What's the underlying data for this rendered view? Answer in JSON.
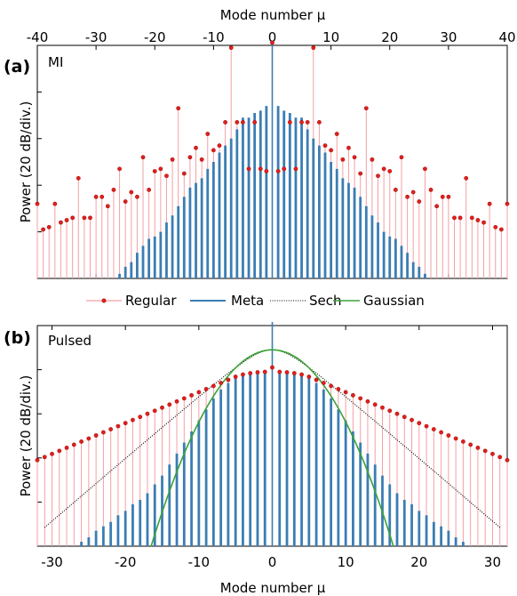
{
  "colors": {
    "regular": "#f4a0a4",
    "regular_marker": "#e0201c",
    "meta": "#3b7db4",
    "sech": "#000000",
    "gaussian": "#3aa335"
  },
  "chart_data": [
    {
      "type": "stem",
      "panel_letter": "(a)",
      "panel_name": "MI",
      "xlabel": "Mode number μ",
      "xlabel_position": "top",
      "ylabel": "Power (20 dB/div.)",
      "xlim": [
        -40,
        40
      ],
      "xticks": [
        -40,
        -30,
        -20,
        -10,
        0,
        10,
        20,
        30,
        40
      ],
      "xtick_labels": [
        "-40",
        "-30",
        "-20",
        "-10",
        "0",
        "10",
        "20",
        "30",
        "40"
      ],
      "ylim": [
        0,
        5
      ],
      "y_units": "divisions (20 dB each)",
      "series": [
        {
          "name": "Regular",
          "style": "stem-with-dot-markers",
          "x": [
            -40,
            -39,
            -38,
            -37,
            -36,
            -35,
            -34,
            -33,
            -32,
            -31,
            -30,
            -29,
            -28,
            -27,
            -26,
            -25,
            -24,
            -23,
            -22,
            -21,
            -20,
            -19,
            -18,
            -17,
            -16,
            -15,
            -14,
            -13,
            -12,
            -11,
            -10,
            -9,
            -8,
            -7,
            -6,
            -5,
            -4,
            -3,
            -2,
            -1,
            0,
            1,
            2,
            3,
            4,
            5,
            6,
            7,
            8,
            9,
            10,
            11,
            12,
            13,
            14,
            15,
            16,
            17,
            18,
            19,
            20,
            21,
            22,
            23,
            24,
            25,
            26,
            27,
            28,
            29,
            30,
            31,
            32,
            33,
            34,
            35,
            36,
            37,
            38,
            39,
            40
          ],
          "y": [
            1.6,
            1.05,
            1.1,
            1.6,
            1.2,
            1.25,
            1.3,
            2.15,
            1.3,
            1.3,
            1.75,
            1.75,
            1.55,
            1.9,
            2.35,
            1.65,
            1.85,
            1.75,
            2.6,
            1.9,
            2.3,
            2.35,
            2.2,
            2.55,
            3.65,
            2.25,
            2.6,
            2.8,
            2.55,
            3.1,
            2.75,
            2.85,
            3.35,
            4.95,
            3.35,
            3.35,
            2.35,
            3.35,
            2.35,
            2.3,
            5.9,
            2.3,
            2.35,
            3.35,
            2.35,
            3.35,
            3.35,
            4.95,
            3.35,
            2.85,
            2.75,
            3.1,
            2.55,
            2.8,
            2.6,
            2.25,
            3.65,
            2.55,
            2.2,
            2.35,
            2.3,
            1.9,
            2.6,
            1.75,
            1.85,
            1.65,
            2.35,
            1.9,
            1.55,
            1.75,
            1.75,
            1.3,
            1.3,
            2.15,
            1.3,
            1.25,
            1.2,
            1.6,
            1.1,
            1.05,
            1.6
          ]
        },
        {
          "name": "Meta",
          "style": "thick-bars",
          "x": [
            -40,
            -39,
            -38,
            -37,
            -36,
            -35,
            -34,
            -33,
            -32,
            -31,
            -30,
            -29,
            -28,
            -27,
            -26,
            -25,
            -24,
            -23,
            -22,
            -21,
            -20,
            -19,
            -18,
            -17,
            -16,
            -15,
            -14,
            -13,
            -12,
            -11,
            -10,
            -9,
            -8,
            -7,
            -6,
            -5,
            -4,
            -3,
            -2,
            -1,
            0,
            1,
            2,
            3,
            4,
            5,
            6,
            7,
            8,
            9,
            10,
            11,
            12,
            13,
            14,
            15,
            16,
            17,
            18,
            19,
            20,
            21,
            22,
            23,
            24,
            25,
            26,
            27,
            28,
            29,
            30,
            31,
            32,
            33,
            34,
            35,
            36,
            37,
            38,
            39,
            40
          ],
          "y": [
            0,
            0,
            0,
            0,
            0,
            0,
            0,
            0,
            0,
            0,
            0,
            0,
            0,
            0,
            0.1,
            0.25,
            0.35,
            0.55,
            0.7,
            0.85,
            0.9,
            1.0,
            1.2,
            1.35,
            1.55,
            1.75,
            1.95,
            2.05,
            2.15,
            2.35,
            2.5,
            2.7,
            2.85,
            3.0,
            3.2,
            3.45,
            3.45,
            3.55,
            3.6,
            3.7,
            6.4,
            3.7,
            3.6,
            3.55,
            3.45,
            3.45,
            3.2,
            3.0,
            2.85,
            2.7,
            2.5,
            2.35,
            2.15,
            2.05,
            1.95,
            1.75,
            1.55,
            1.35,
            1.2,
            1.0,
            0.9,
            0.85,
            0.7,
            0.55,
            0.35,
            0.25,
            0.1,
            0,
            0,
            0,
            0,
            0,
            0,
            0,
            0,
            0,
            0,
            0,
            0,
            0,
            0
          ]
        }
      ]
    },
    {
      "type": "stem",
      "panel_letter": "(b)",
      "panel_name": "Pulsed",
      "xlabel": "Mode number μ",
      "xlabel_position": "bottom",
      "ylabel": "Power (20 dB/div.)",
      "xlim": [
        -32,
        32
      ],
      "xticks": [
        -30,
        -20,
        -10,
        0,
        10,
        20,
        30
      ],
      "xtick_labels": [
        "-30",
        "-20",
        "-10",
        "0",
        "10",
        "20",
        "30"
      ],
      "ylim": [
        0,
        5
      ],
      "y_units": "divisions (20 dB each)",
      "series": [
        {
          "name": "Regular",
          "style": "stem-with-dot-markers",
          "x": [
            -32,
            -31,
            -30,
            -29,
            -28,
            -27,
            -26,
            -25,
            -24,
            -23,
            -22,
            -21,
            -20,
            -19,
            -18,
            -17,
            -16,
            -15,
            -14,
            -13,
            -12,
            -11,
            -10,
            -9,
            -8,
            -7,
            -6,
            -5,
            -4,
            -3,
            -2,
            -1,
            0,
            1,
            2,
            3,
            4,
            5,
            6,
            7,
            8,
            9,
            10,
            11,
            12,
            13,
            14,
            15,
            16,
            17,
            18,
            19,
            20,
            21,
            22,
            23,
            24,
            25,
            26,
            27,
            28,
            29,
            30,
            31,
            32
          ],
          "y": [
            1.95,
            2.02,
            2.09,
            2.16,
            2.23,
            2.3,
            2.37,
            2.44,
            2.51,
            2.58,
            2.65,
            2.72,
            2.79,
            2.86,
            2.93,
            3.0,
            3.07,
            3.14,
            3.21,
            3.28,
            3.35,
            3.42,
            3.49,
            3.56,
            3.63,
            3.7,
            3.77,
            3.84,
            3.89,
            3.92,
            3.94,
            3.95,
            4.05,
            3.95,
            3.94,
            3.92,
            3.89,
            3.84,
            3.77,
            3.7,
            3.63,
            3.56,
            3.49,
            3.42,
            3.35,
            3.28,
            3.21,
            3.14,
            3.07,
            3.0,
            2.93,
            2.86,
            2.79,
            2.72,
            2.65,
            2.58,
            2.51,
            2.44,
            2.37,
            2.3,
            2.23,
            2.16,
            2.09,
            2.02,
            1.95
          ]
        },
        {
          "name": "Meta",
          "style": "thick-bars",
          "x": [
            -32,
            -31,
            -30,
            -29,
            -28,
            -27,
            -26,
            -25,
            -24,
            -23,
            -22,
            -21,
            -20,
            -19,
            -18,
            -17,
            -16,
            -15,
            -14,
            -13,
            -12,
            -11,
            -10,
            -9,
            -8,
            -7,
            -6,
            -5,
            -4,
            -3,
            -2,
            -1,
            0,
            1,
            2,
            3,
            4,
            5,
            6,
            7,
            8,
            9,
            10,
            11,
            12,
            13,
            14,
            15,
            16,
            17,
            18,
            19,
            20,
            21,
            22,
            23,
            24,
            25,
            26,
            27,
            28,
            29,
            30,
            31,
            32
          ],
          "y": [
            0,
            0,
            0,
            0,
            0,
            0,
            0.1,
            0.2,
            0.35,
            0.45,
            0.55,
            0.7,
            0.8,
            0.95,
            1.05,
            1.2,
            1.4,
            1.6,
            1.85,
            2.1,
            2.35,
            2.6,
            2.85,
            3.1,
            3.35,
            3.55,
            3.7,
            3.8,
            3.85,
            3.9,
            3.95,
            3.95,
            5.9,
            3.95,
            3.95,
            3.9,
            3.85,
            3.8,
            3.7,
            3.55,
            3.35,
            3.1,
            2.85,
            2.6,
            2.35,
            2.1,
            1.85,
            1.6,
            1.4,
            1.2,
            1.05,
            0.95,
            0.8,
            0.7,
            0.55,
            0.45,
            0.35,
            0.2,
            0.1,
            0,
            0,
            0,
            0,
            0,
            0
          ]
        },
        {
          "name": "Sech",
          "style": "dotted-line",
          "x_range": [
            -31,
            31
          ],
          "peak": 4.45,
          "slope_per_mode": 0.143
        },
        {
          "name": "Gaussian",
          "style": "solid-line",
          "x_range": [
            -16.5,
            16.5
          ],
          "peak": 4.45,
          "curvature": 0.01635
        }
      ]
    }
  ],
  "legend": {
    "placement": "between-panels",
    "items": [
      {
        "name": "Regular",
        "symbol": "stem-dot"
      },
      {
        "name": "Meta",
        "symbol": "line"
      },
      {
        "name": "Sech",
        "symbol": "dotted-line"
      },
      {
        "name": "Gaussian",
        "symbol": "line"
      }
    ]
  }
}
